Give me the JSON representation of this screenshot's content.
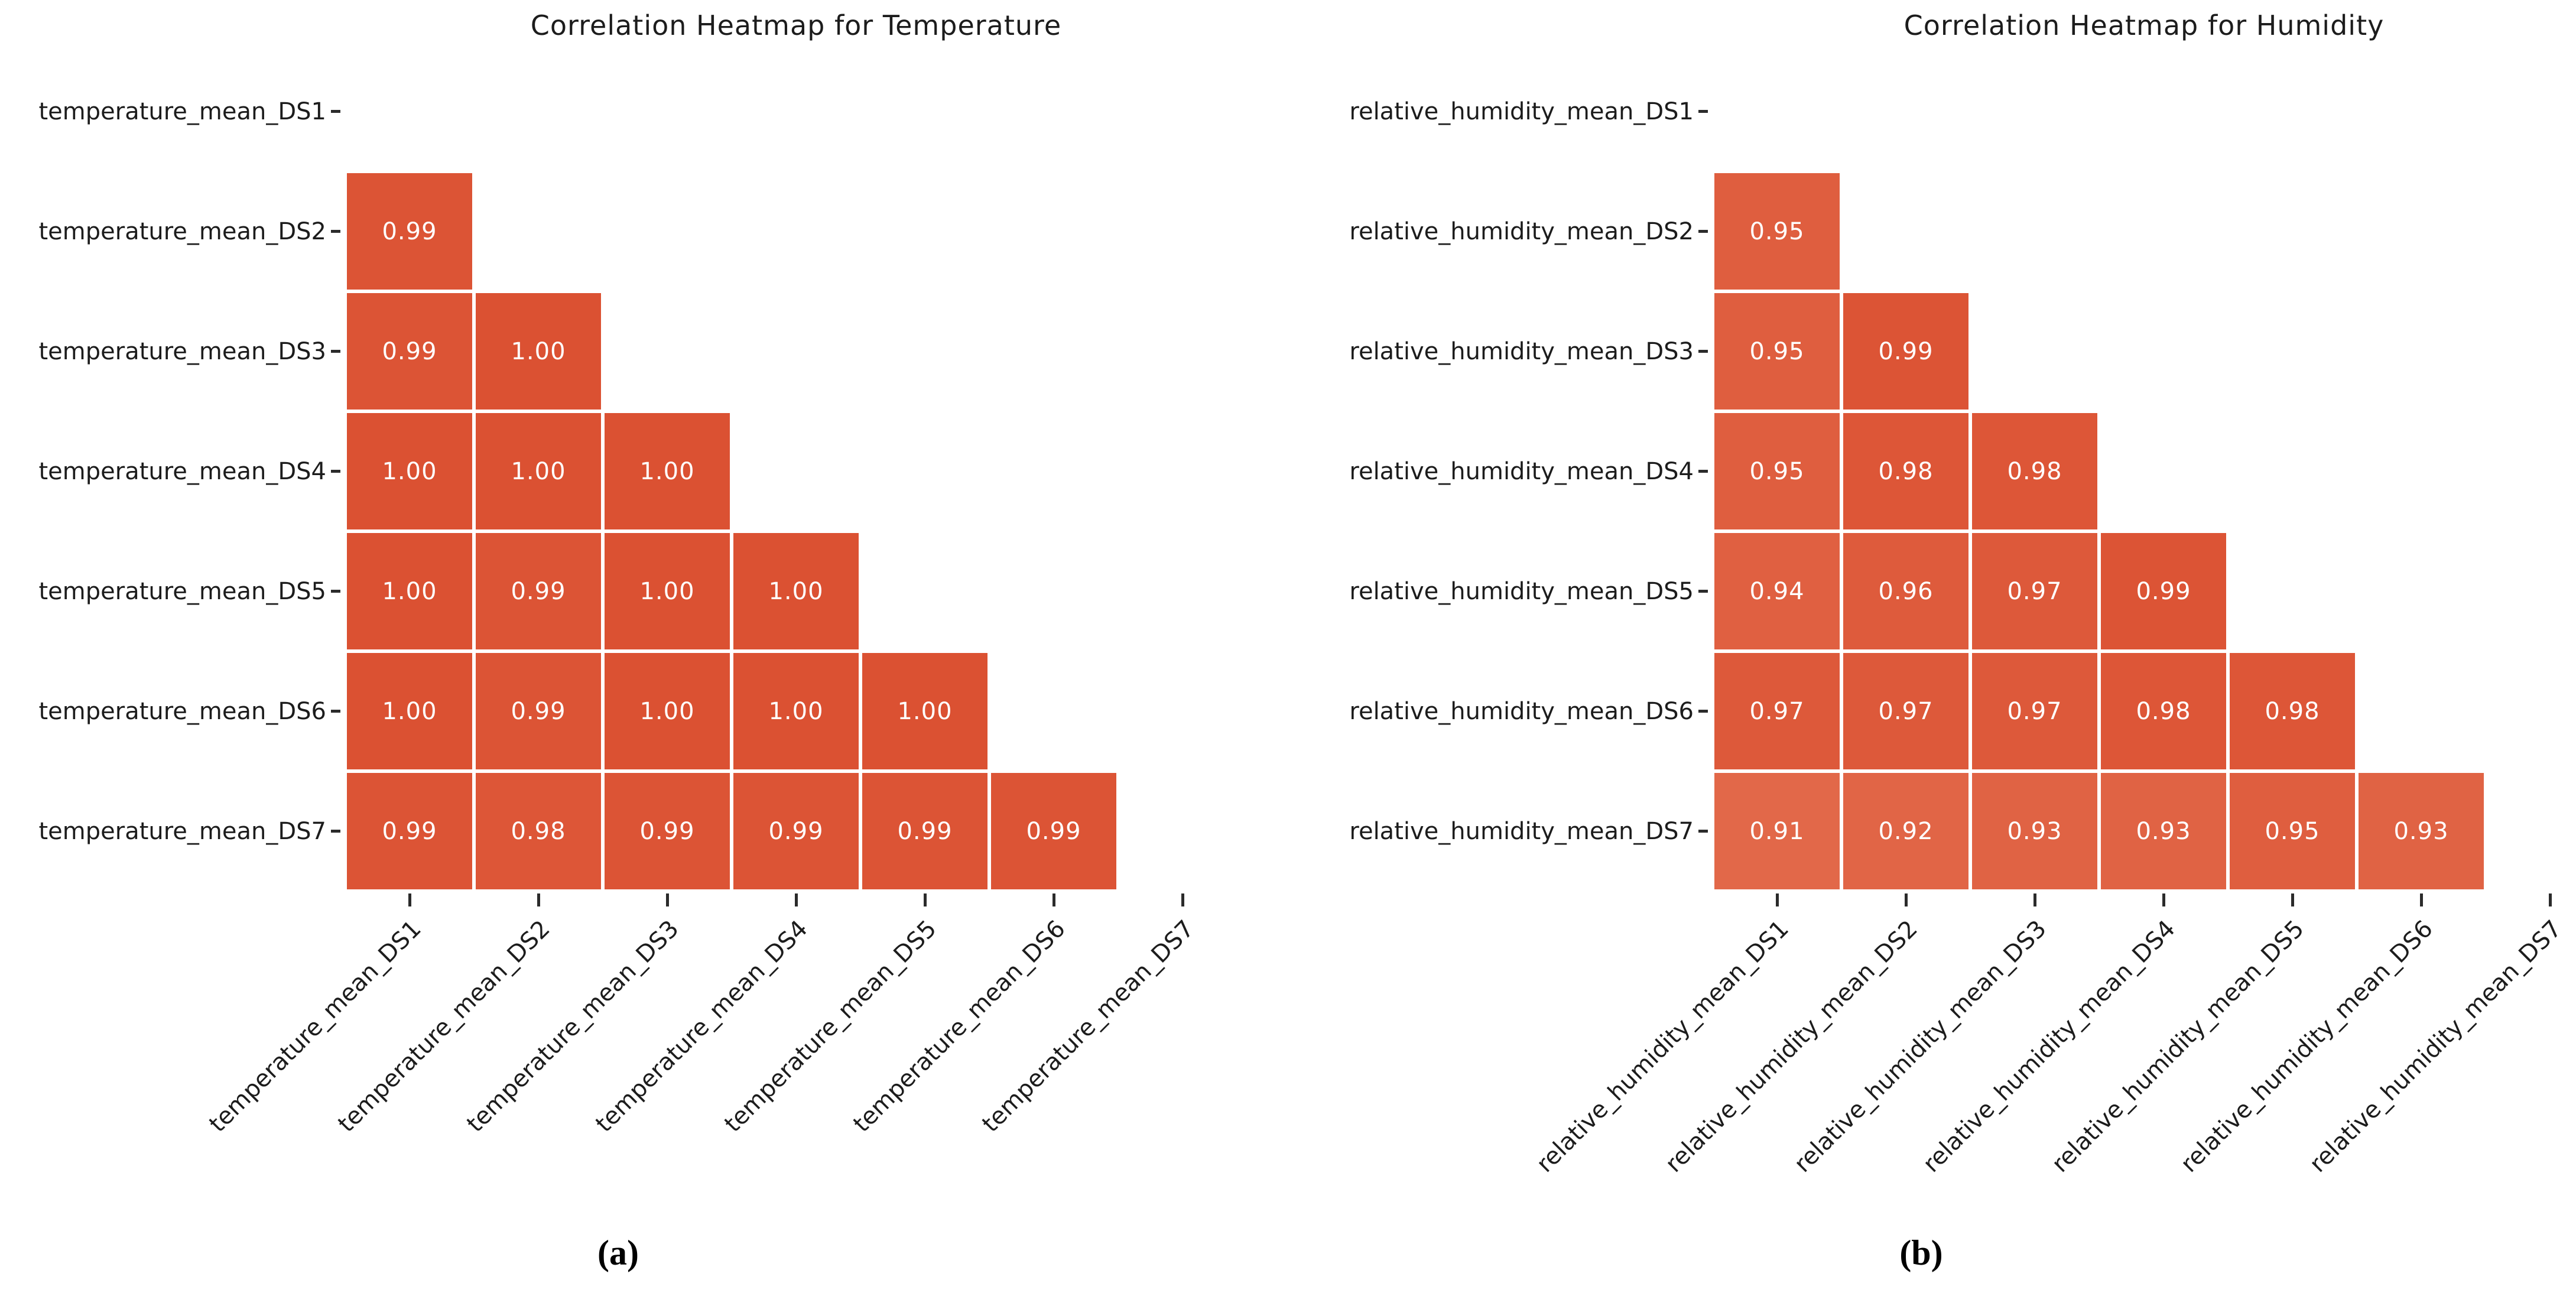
{
  "figure": {
    "captions": {
      "a": "(a)",
      "b": "(b)"
    }
  },
  "style": {
    "background": "#ffffff",
    "text_color": "#1c1c1c",
    "tick_color": "#2b2b2b",
    "cell_text_color": "#ffffff",
    "cell_color_low": "#e26849",
    "cell_color_high": "#db5132",
    "color_scale_domain": [
      0.91,
      1.0
    ]
  },
  "chart_data": [
    {
      "id": "temperature",
      "type": "heatmap",
      "title": "Correlation Heatmap for Temperature",
      "mask": "upper triangle and diagonal hidden",
      "value_format": "0.00",
      "legend": "none",
      "labels": [
        "temperature_mean_DS1",
        "temperature_mean_DS2",
        "temperature_mean_DS3",
        "temperature_mean_DS4",
        "temperature_mean_DS5",
        "temperature_mean_DS6",
        "temperature_mean_DS7"
      ],
      "rows": [
        [],
        [
          0.99
        ],
        [
          0.99,
          1.0
        ],
        [
          1.0,
          1.0,
          1.0
        ],
        [
          1.0,
          0.99,
          1.0,
          1.0
        ],
        [
          1.0,
          0.99,
          1.0,
          1.0,
          1.0
        ],
        [
          0.99,
          0.98,
          0.99,
          0.99,
          0.99,
          0.99
        ]
      ]
    },
    {
      "id": "humidity",
      "type": "heatmap",
      "title": "Correlation Heatmap for Humidity",
      "mask": "upper triangle and diagonal hidden",
      "value_format": "0.00",
      "legend": "none",
      "labels": [
        "relative_humidity_mean_DS1",
        "relative_humidity_mean_DS2",
        "relative_humidity_mean_DS3",
        "relative_humidity_mean_DS4",
        "relative_humidity_mean_DS5",
        "relative_humidity_mean_DS6",
        "relative_humidity_mean_DS7"
      ],
      "rows": [
        [],
        [
          0.95
        ],
        [
          0.95,
          0.99
        ],
        [
          0.95,
          0.98,
          0.98
        ],
        [
          0.94,
          0.96,
          0.97,
          0.99
        ],
        [
          0.97,
          0.97,
          0.97,
          0.98,
          0.98
        ],
        [
          0.91,
          0.92,
          0.93,
          0.93,
          0.95,
          0.93
        ]
      ]
    }
  ]
}
